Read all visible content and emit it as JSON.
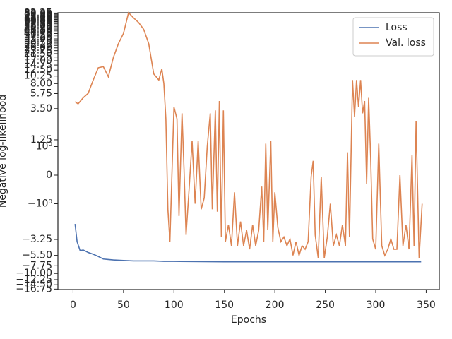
{
  "chart_data": {
    "type": "line",
    "xlabel": "Epochs",
    "ylabel": "Negative log-likelihood",
    "xlim": [
      -15,
      363
    ],
    "ylim": [
      -17,
      83
    ],
    "yscale": "symlog",
    "linthresh": 1,
    "xticks": [
      0,
      50,
      100,
      150,
      200,
      250,
      300,
      350
    ],
    "yticks": [
      {
        "value": -16.75,
        "label": "−16.75"
      },
      {
        "value": -14.5,
        "label": "−14.50"
      },
      {
        "value": -12.25,
        "label": "−12.25"
      },
      {
        "value": -10,
        "label": "−10.00"
      },
      {
        "value": -7.75,
        "label": "−7.75"
      },
      {
        "value": -5.5,
        "label": "−5.50"
      },
      {
        "value": -3.25,
        "label": "−3.25"
      },
      {
        "value": -1,
        "label": "−10⁰"
      },
      0,
      {
        "value": 1,
        "label": "10⁰"
      },
      {
        "value": 1.25,
        "label": "1.25"
      },
      {
        "value": 3.5,
        "label": "3.50"
      },
      {
        "value": 5.75,
        "label": "5.75"
      },
      {
        "value": 8,
        "label": "8.00"
      },
      {
        "value": 10.25,
        "label": "10.25"
      },
      {
        "value": 12.5,
        "label": "12.50"
      },
      {
        "value": 14.75,
        "label": "14.75"
      },
      {
        "value": 17,
        "label": "17.00"
      },
      {
        "value": 19.25,
        "label": "19.25"
      },
      {
        "value": 21.5,
        "label": "21.50"
      },
      {
        "value": 23.75,
        "label": "23.75"
      },
      {
        "value": 26,
        "label": "26.00"
      },
      {
        "value": 28.25,
        "label": "28.25"
      },
      {
        "value": 30.5,
        "label": "30.50"
      },
      {
        "value": 32.75,
        "label": "32.75"
      },
      {
        "value": 35,
        "label": "35.00"
      },
      {
        "value": 37.25,
        "label": "37.25"
      },
      {
        "value": 39.5,
        "label": "39.50"
      },
      {
        "value": 41.75,
        "label": "41.75"
      },
      {
        "value": 44,
        "label": "44.00"
      },
      {
        "value": 46.25,
        "label": "46.25"
      },
      {
        "value": 48.5,
        "label": "48.50"
      },
      {
        "value": 50.75,
        "label": "50.75"
      },
      {
        "value": 53,
        "label": "53.00"
      },
      {
        "value": 55.25,
        "label": "55.25"
      },
      {
        "value": 57.5,
        "label": "57.50"
      },
      {
        "value": 59.75,
        "label": "59.75"
      },
      {
        "value": 62,
        "label": "62.00"
      },
      {
        "value": 64.25,
        "label": "64.25"
      },
      {
        "value": 66.5,
        "label": "66.50"
      },
      {
        "value": 68.75,
        "label": "68.75"
      },
      {
        "value": 71,
        "label": "71.00"
      },
      {
        "value": 73.25,
        "label": "73.25"
      },
      {
        "value": 75.5,
        "label": "75.50"
      },
      {
        "value": 77.75,
        "label": "77.75"
      },
      {
        "value": 80,
        "label": "80.00"
      },
      {
        "value": 82.25,
        "label": "82.25"
      }
    ],
    "legend": "upper right",
    "series": [
      {
        "name": "Loss",
        "color": "#4c72b0",
        "x": [
          2,
          4,
          7,
          10,
          15,
          20,
          25,
          30,
          35,
          40,
          50,
          60,
          70,
          80,
          90,
          100,
          150,
          200,
          250,
          300,
          345
        ],
        "values": [
          -1.95,
          -3.5,
          -4.7,
          -4.6,
          -5,
          -5.3,
          -5.7,
          -6.2,
          -6.3,
          -6.4,
          -6.5,
          -6.6,
          -6.6,
          -6.6,
          -6.7,
          -6.7,
          -6.8,
          -6.8,
          -6.8,
          -6.8,
          -6.8
        ]
      },
      {
        "name": "Val. loss",
        "color": "#dd8452",
        "x": [
          2,
          5,
          10,
          15,
          20,
          25,
          30,
          35,
          40,
          45,
          50,
          55,
          60,
          65,
          70,
          75,
          80,
          85,
          88,
          90,
          92,
          94,
          96,
          100,
          103,
          105,
          108,
          110,
          112,
          115,
          118,
          121,
          124,
          127,
          130,
          133,
          136,
          138,
          141,
          143,
          145,
          147,
          149,
          151,
          154,
          157,
          160,
          163,
          166,
          169,
          172,
          175,
          178,
          181,
          184,
          187,
          189,
          191,
          193,
          196,
          198,
          200,
          203,
          206,
          209,
          212,
          215,
          218,
          221,
          224,
          227,
          230,
          233,
          236,
          238,
          240,
          243,
          246,
          249,
          252,
          255,
          258,
          261,
          264,
          267,
          270,
          272,
          274,
          277,
          279,
          281,
          283,
          285,
          287,
          289,
          291,
          293,
          295,
          297,
          300,
          303,
          306,
          309,
          312,
          315,
          318,
          321,
          324,
          327,
          330,
          333,
          336,
          338,
          340,
          343,
          346
        ],
        "values": [
          4.4,
          4.1,
          5,
          5.8,
          9,
          13.5,
          14,
          10,
          19,
          30,
          42,
          83,
          70,
          60,
          48,
          30,
          11,
          9,
          13,
          8,
          2.5,
          -1.2,
          -3.5,
          3.7,
          2.5,
          -1.5,
          3,
          0.2,
          -2.8,
          -0.5,
          1.2,
          -1,
          1.2,
          -1.2,
          -0.8,
          1,
          3,
          -1.2,
          3.3,
          -1.3,
          4.5,
          -3,
          3.3,
          -3.5,
          -2,
          -4,
          -0.6,
          -4,
          -1.8,
          -4,
          -2.4,
          -4.5,
          -2,
          -4,
          -2.4,
          -0.4,
          -3.5,
          1.1,
          -2.4,
          1.2,
          -3.5,
          -0.6,
          -2.2,
          -3.5,
          -3,
          -4,
          -3.2,
          -5.5,
          -3.5,
          -5.5,
          -4,
          -4.5,
          -3.5,
          -0.05,
          0.5,
          -2.8,
          -6,
          -0.05,
          -6,
          -3,
          -1,
          -4,
          -2.8,
          -4,
          -2,
          -4,
          0.8,
          -3,
          9,
          2.7,
          9,
          3.7,
          9,
          3,
          4.5,
          -0.3,
          5,
          0.6,
          -3.2,
          -4.5,
          1.1,
          -4,
          -5.5,
          -4.5,
          -3.2,
          -4.5,
          -4.5,
          0,
          -4,
          -2,
          -4.5,
          0.7,
          -4,
          2.3,
          -6,
          -1
        ]
      }
    ]
  }
}
